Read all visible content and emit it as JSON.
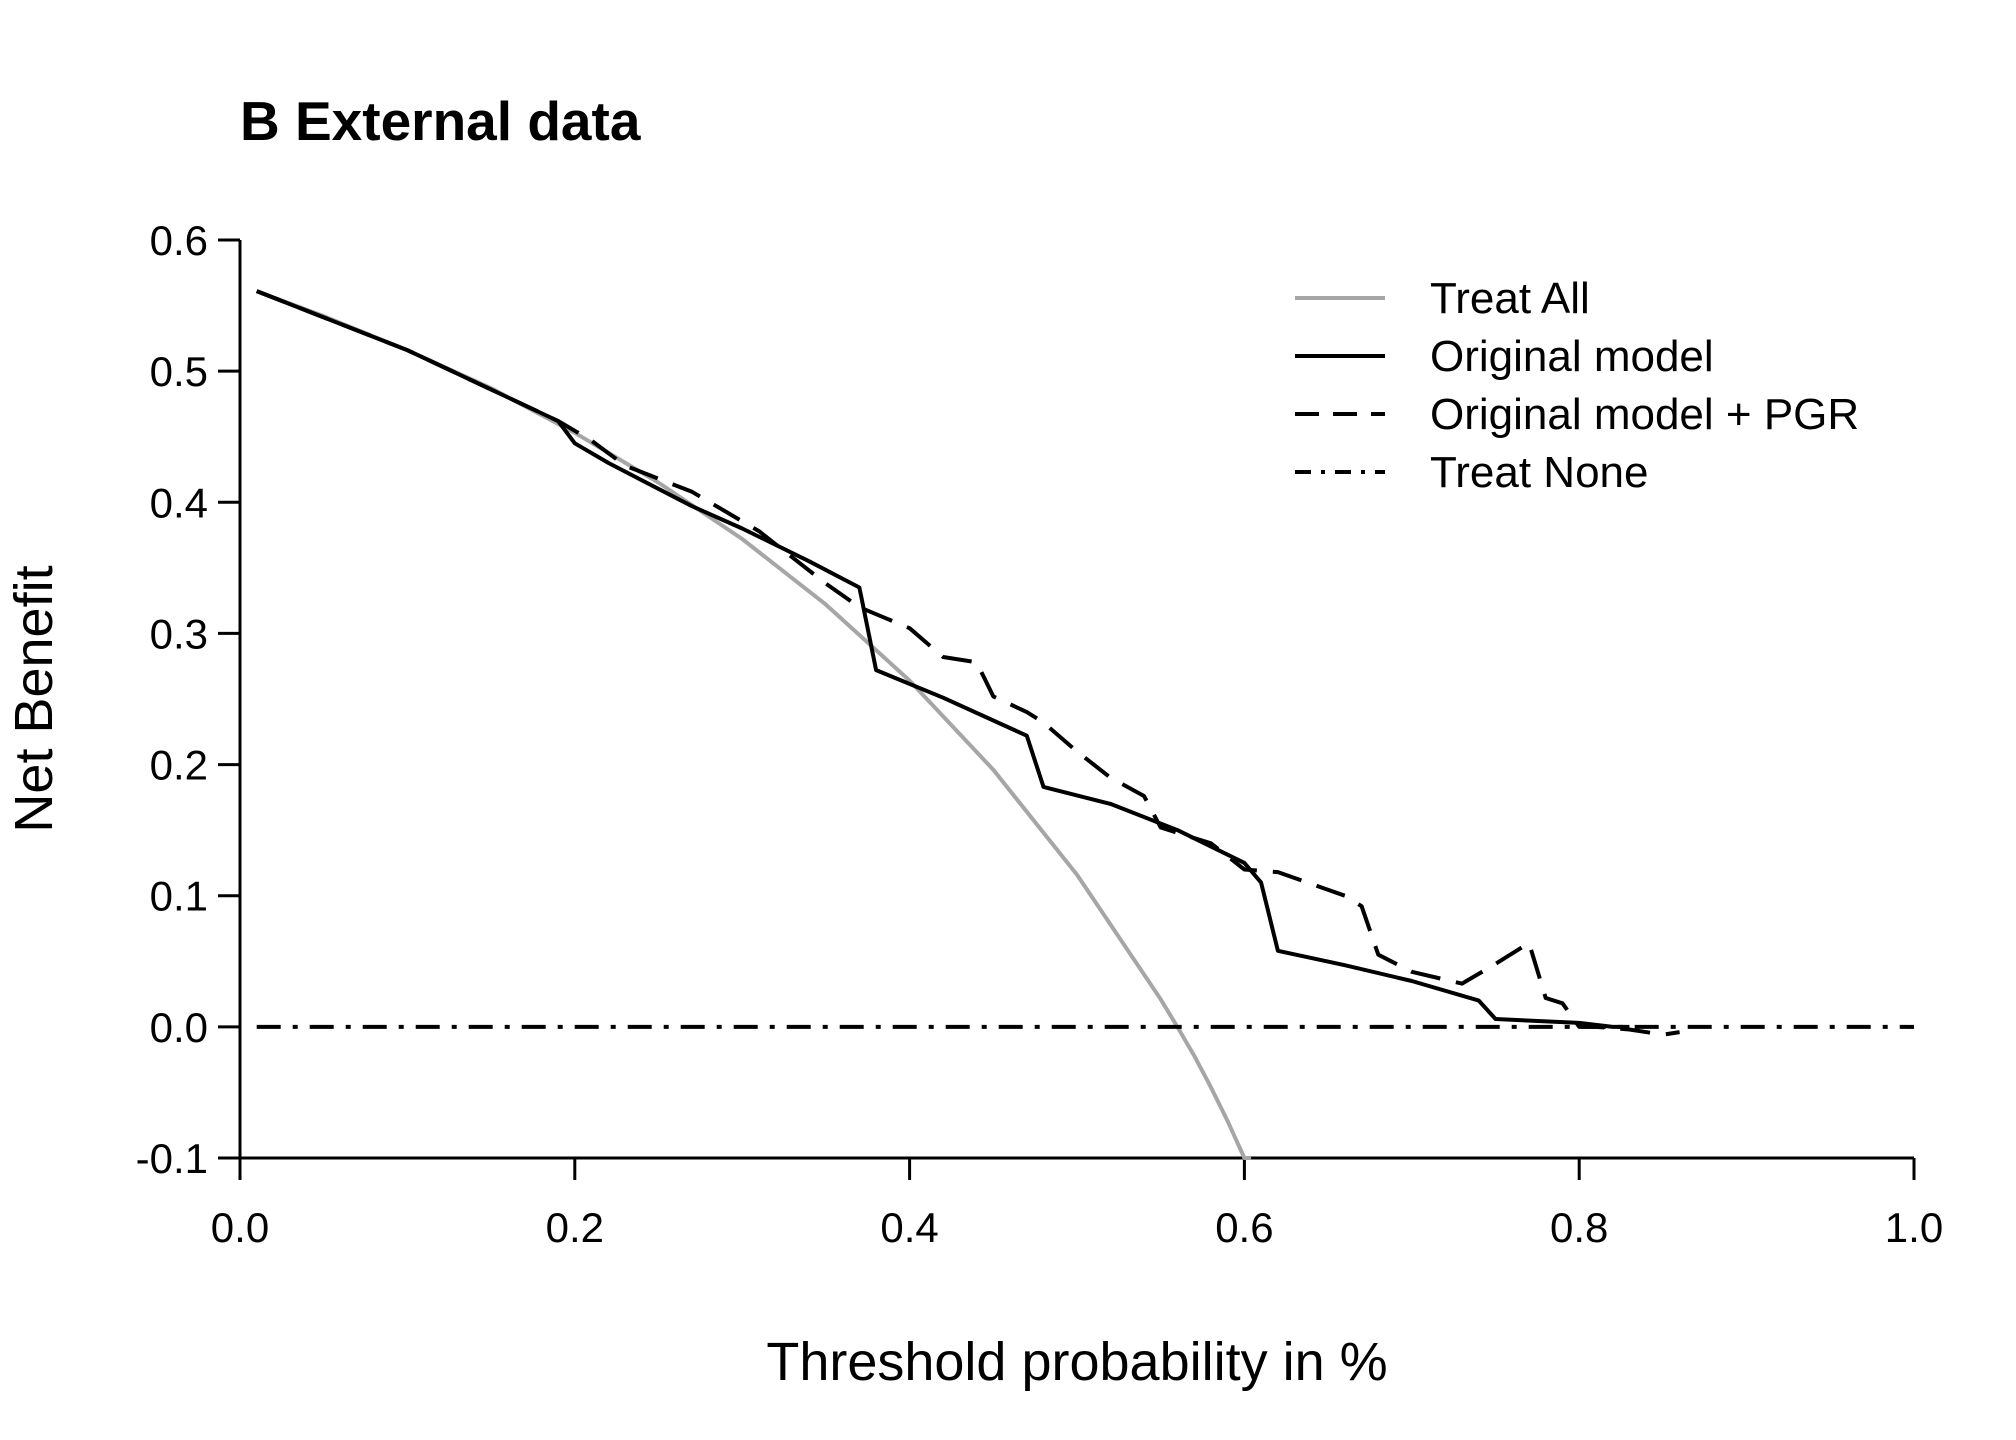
{
  "chart_data": {
    "type": "line",
    "title": "B External data",
    "xlabel": "Threshold probability in %",
    "ylabel": "Net Benefit",
    "xlim": [
      0.0,
      1.0
    ],
    "ylim": [
      -0.1,
      0.6
    ],
    "xticks": [
      "0.0",
      "0.2",
      "0.4",
      "0.6",
      "0.8",
      "1.0"
    ],
    "yticks": [
      "-0.1",
      "0.0",
      "0.1",
      "0.2",
      "0.3",
      "0.4",
      "0.5",
      "0.6"
    ],
    "grid": false,
    "legend": {
      "position": "top-right",
      "entries": [
        "Treat All",
        "Original model",
        "Original model + PGR",
        "Treat None"
      ]
    },
    "series": [
      {
        "name": "Treat All",
        "color": "#a6a6a6",
        "style": "solid",
        "x": [
          0.01,
          0.05,
          0.1,
          0.15,
          0.2,
          0.25,
          0.3,
          0.35,
          0.4,
          0.45,
          0.5,
          0.55,
          0.56,
          0.57,
          0.58,
          0.59,
          0.6,
          0.604
        ],
        "y": [
          0.561,
          0.542,
          0.516,
          0.487,
          0.453,
          0.415,
          0.372,
          0.322,
          0.264,
          0.196,
          0.116,
          0.021,
          0.0,
          -0.022,
          -0.046,
          -0.072,
          -0.1,
          -0.1
        ]
      },
      {
        "name": "Original model",
        "color": "#000000",
        "style": "solid",
        "x": [
          0.01,
          0.1,
          0.19,
          0.2,
          0.22,
          0.27,
          0.3,
          0.34,
          0.37,
          0.38,
          0.42,
          0.47,
          0.48,
          0.52,
          0.56,
          0.6,
          0.61,
          0.62,
          0.66,
          0.7,
          0.74,
          0.75,
          0.8,
          0.82,
          0.83
        ],
        "y": [
          0.561,
          0.516,
          0.462,
          0.445,
          0.43,
          0.397,
          0.38,
          0.355,
          0.335,
          0.272,
          0.251,
          0.222,
          0.183,
          0.17,
          0.15,
          0.125,
          0.11,
          0.058,
          0.047,
          0.035,
          0.02,
          0.006,
          0.003,
          0.0,
          0.0
        ]
      },
      {
        "name": "Original model + PGR",
        "color": "#000000",
        "style": "dashed",
        "x": [
          0.01,
          0.1,
          0.19,
          0.21,
          0.23,
          0.27,
          0.31,
          0.32,
          0.35,
          0.37,
          0.4,
          0.42,
          0.44,
          0.45,
          0.47,
          0.48,
          0.5,
          0.52,
          0.54,
          0.55,
          0.56,
          0.58,
          0.6,
          0.62,
          0.66,
          0.67,
          0.68,
          0.7,
          0.73,
          0.75,
          0.77,
          0.78,
          0.79,
          0.8,
          0.81,
          0.83,
          0.85,
          0.86
        ],
        "y": [
          0.561,
          0.516,
          0.462,
          0.447,
          0.428,
          0.408,
          0.378,
          0.368,
          0.338,
          0.32,
          0.304,
          0.282,
          0.278,
          0.252,
          0.24,
          0.232,
          0.21,
          0.19,
          0.176,
          0.152,
          0.148,
          0.14,
          0.12,
          0.118,
          0.1,
          0.092,
          0.055,
          0.042,
          0.033,
          0.048,
          0.064,
          0.022,
          0.018,
          0.0,
          0.0,
          -0.002,
          -0.006,
          -0.004
        ]
      },
      {
        "name": "Treat None",
        "color": "#000000",
        "style": "dotdash",
        "x": [
          0.01,
          1.0
        ],
        "y": [
          0.0,
          0.0
        ]
      }
    ]
  }
}
